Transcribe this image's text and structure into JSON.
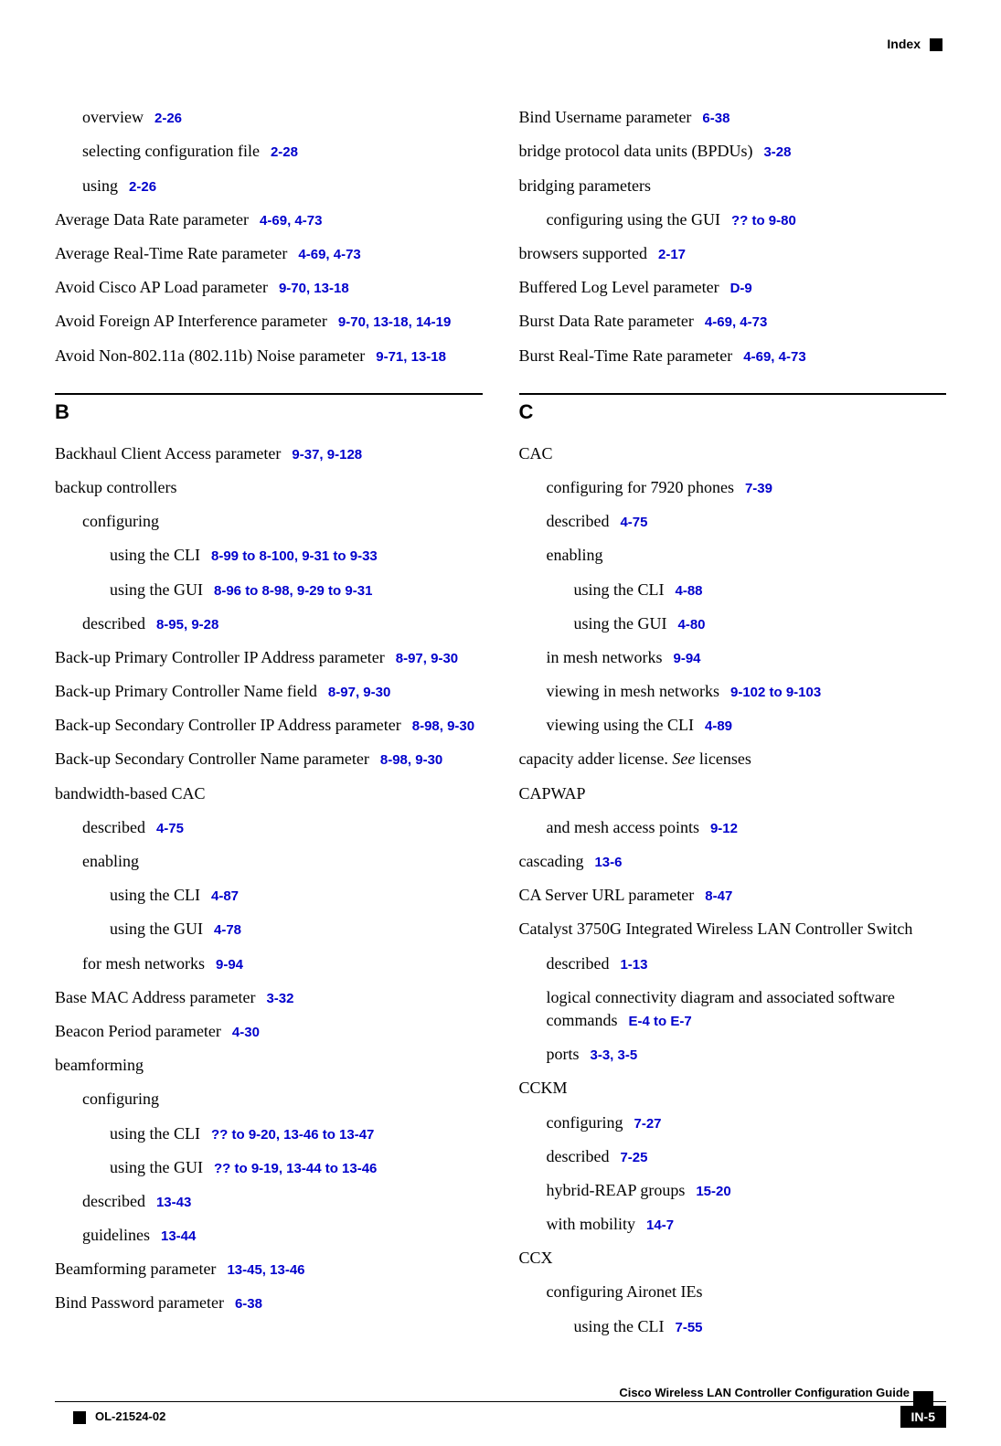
{
  "header": {
    "section": "Index"
  },
  "left": {
    "e0": {
      "t": "overview",
      "r": "2-26"
    },
    "e1": {
      "t": "selecting configuration file",
      "r": "2-28"
    },
    "e2": {
      "t": "using",
      "r": "2-26"
    },
    "e3": {
      "t": "Average Data Rate parameter",
      "r": "4-69, 4-73"
    },
    "e4": {
      "t": "Average Real-Time Rate parameter",
      "r": "4-69, 4-73"
    },
    "e5": {
      "t": "Avoid Cisco AP Load parameter",
      "r": "9-70, 13-18"
    },
    "e6": {
      "t": "Avoid Foreign AP Interference parameter",
      "r": "9-70, 13-18, 14-19"
    },
    "e7": {
      "t": "Avoid Non-802.11a (802.11b) Noise parameter",
      "r": "9-71, 13-18"
    },
    "letterB": "B",
    "e8": {
      "t": "Backhaul Client Access parameter",
      "r": "9-37, 9-128"
    },
    "e9": {
      "t": "backup controllers"
    },
    "e10": {
      "t": "configuring"
    },
    "e11": {
      "t": "using the CLI",
      "r": "8-99 to 8-100, 9-31 to 9-33"
    },
    "e12": {
      "t": "using the GUI",
      "r": "8-96 to 8-98, 9-29 to 9-31"
    },
    "e13": {
      "t": "described",
      "r": "8-95, 9-28"
    },
    "e14": {
      "t": "Back-up Primary Controller IP Address parameter",
      "r": "8-97, 9-30"
    },
    "e15": {
      "t": "Back-up Primary Controller Name field",
      "r": "8-97, 9-30"
    },
    "e16": {
      "t": "Back-up Secondary Controller IP Address parameter",
      "r": "8-98, 9-30"
    },
    "e17": {
      "t": "Back-up Secondary Controller Name parameter",
      "r": "8-98, 9-30"
    },
    "e18": {
      "t": "bandwidth-based CAC"
    },
    "e19": {
      "t": "described",
      "r": "4-75"
    },
    "e20": {
      "t": "enabling"
    },
    "e21": {
      "t": "using the CLI",
      "r": "4-87"
    },
    "e22": {
      "t": "using the GUI",
      "r": "4-78"
    },
    "e23": {
      "t": "for mesh networks",
      "r": "9-94"
    },
    "e24": {
      "t": "Base MAC Address parameter",
      "r": "3-32"
    },
    "e25": {
      "t": "Beacon Period parameter",
      "r": "4-30"
    },
    "e26": {
      "t": "beamforming"
    },
    "e27": {
      "t": "configuring"
    },
    "e28": {
      "t": "using the CLI",
      "r": "?? to 9-20, 13-46 to 13-47"
    },
    "e29": {
      "t": "using the GUI",
      "r": "?? to 9-19, 13-44 to 13-46"
    },
    "e30": {
      "t": "described",
      "r": "13-43"
    },
    "e31": {
      "t": "guidelines",
      "r": "13-44"
    },
    "e32": {
      "t": "Beamforming parameter",
      "r": "13-45, 13-46"
    },
    "e33": {
      "t": "Bind Password parameter",
      "r": "6-38"
    }
  },
  "right": {
    "e0": {
      "t": "Bind Username parameter",
      "r": "6-38"
    },
    "e1": {
      "t": "bridge protocol data units (BPDUs)",
      "r": "3-28"
    },
    "e2": {
      "t": "bridging parameters"
    },
    "e3": {
      "t": "configuring using the GUI",
      "r": "?? to 9-80"
    },
    "e4": {
      "t": "browsers supported",
      "r": "2-17"
    },
    "e5": {
      "t": "Buffered Log Level parameter",
      "r": "D-9"
    },
    "e6": {
      "t": "Burst Data Rate parameter",
      "r": "4-69, 4-73"
    },
    "e7": {
      "t": "Burst Real-Time Rate parameter",
      "r": "4-69, 4-73"
    },
    "letterC": "C",
    "e8": {
      "t": "CAC"
    },
    "e9": {
      "t": "configuring for 7920 phones",
      "r": "7-39"
    },
    "e10": {
      "t": "described",
      "r": "4-75"
    },
    "e11": {
      "t": "enabling"
    },
    "e12": {
      "t": "using the CLI",
      "r": "4-88"
    },
    "e13": {
      "t": "using the GUI",
      "r": "4-80"
    },
    "e14": {
      "t": "in mesh networks",
      "r": "9-94"
    },
    "e15": {
      "t": "viewing in mesh networks",
      "r": "9-102 to 9-103"
    },
    "e16": {
      "t": "viewing using the CLI",
      "r": "4-89"
    },
    "e17a": {
      "t": "capacity adder license. "
    },
    "e17b": {
      "t": "See"
    },
    "e17c": {
      "t": " licenses"
    },
    "e18": {
      "t": "CAPWAP"
    },
    "e19": {
      "t": "and mesh access points",
      "r": "9-12"
    },
    "e20": {
      "t": "cascading",
      "r": "13-6"
    },
    "e21": {
      "t": "CA Server URL parameter",
      "r": "8-47"
    },
    "e22": {
      "t": "Catalyst 3750G Integrated Wireless LAN Controller Switch"
    },
    "e23": {
      "t": "described",
      "r": "1-13"
    },
    "e24": {
      "t": "logical connectivity diagram and associated software commands",
      "r": "E-4 to E-7"
    },
    "e25": {
      "t": "ports",
      "r": "3-3, 3-5"
    },
    "e26": {
      "t": "CCKM"
    },
    "e27": {
      "t": "configuring",
      "r": "7-27"
    },
    "e28": {
      "t": "described",
      "r": "7-25"
    },
    "e29": {
      "t": "hybrid-REAP groups",
      "r": "15-20"
    },
    "e30": {
      "t": "with mobility",
      "r": "14-7"
    },
    "e31": {
      "t": "CCX"
    },
    "e32": {
      "t": "configuring Aironet IEs"
    },
    "e33": {
      "t": "using the CLI",
      "r": "7-55"
    }
  },
  "footer": {
    "title": "Cisco Wireless LAN Controller Configuration Guide",
    "doc": "OL-21524-02",
    "page": "IN-5"
  }
}
